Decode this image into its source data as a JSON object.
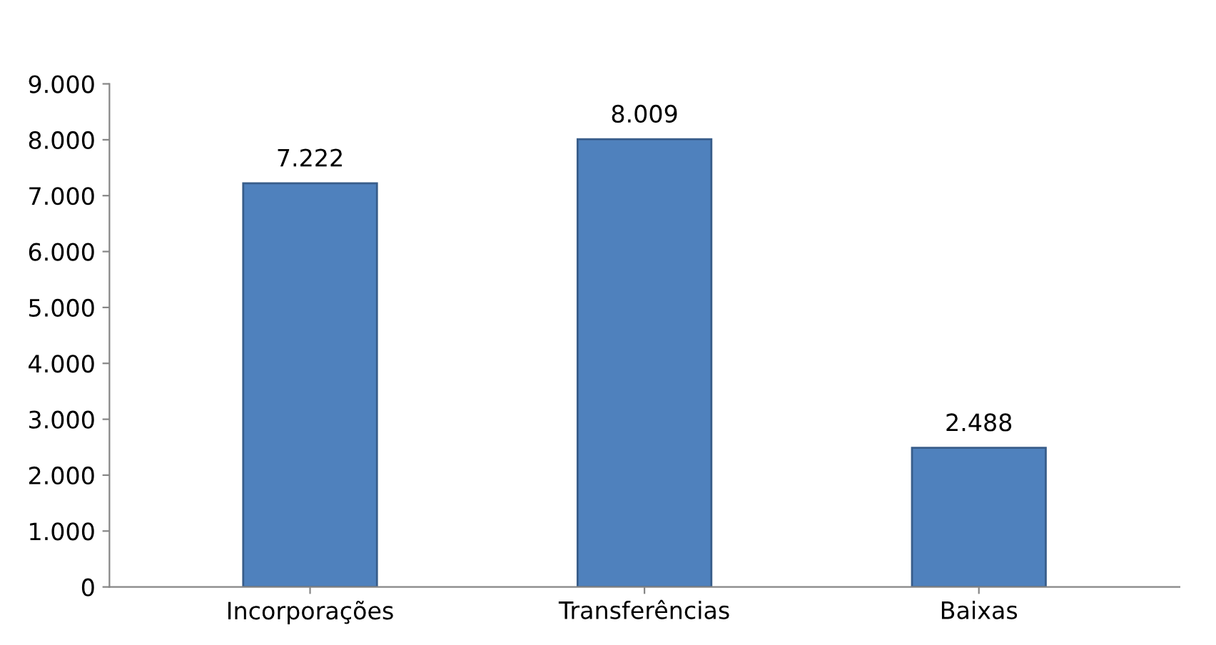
{
  "chart_data": {
    "type": "bar",
    "categories": [
      "Incorporações",
      "Transferências",
      "Baixas"
    ],
    "values": [
      7222,
      8009,
      2488
    ],
    "value_labels": [
      "7.222",
      "8.009",
      "2.488"
    ],
    "color": "#4f81bd",
    "ylim": [
      0,
      9000
    ],
    "yticks": [
      {
        "value": 0,
        "label": "0"
      },
      {
        "value": 1000,
        "label": "1.000"
      },
      {
        "value": 2000,
        "label": "2.000"
      },
      {
        "value": 3000,
        "label": "3.000"
      },
      {
        "value": 4000,
        "label": "4.000"
      },
      {
        "value": 5000,
        "label": "5.000"
      },
      {
        "value": 6000,
        "label": "6.000"
      },
      {
        "value": 7000,
        "label": "7.000"
      },
      {
        "value": 8000,
        "label": "8.000"
      },
      {
        "value": 9000,
        "label": "9.000"
      }
    ],
    "grid": false
  }
}
